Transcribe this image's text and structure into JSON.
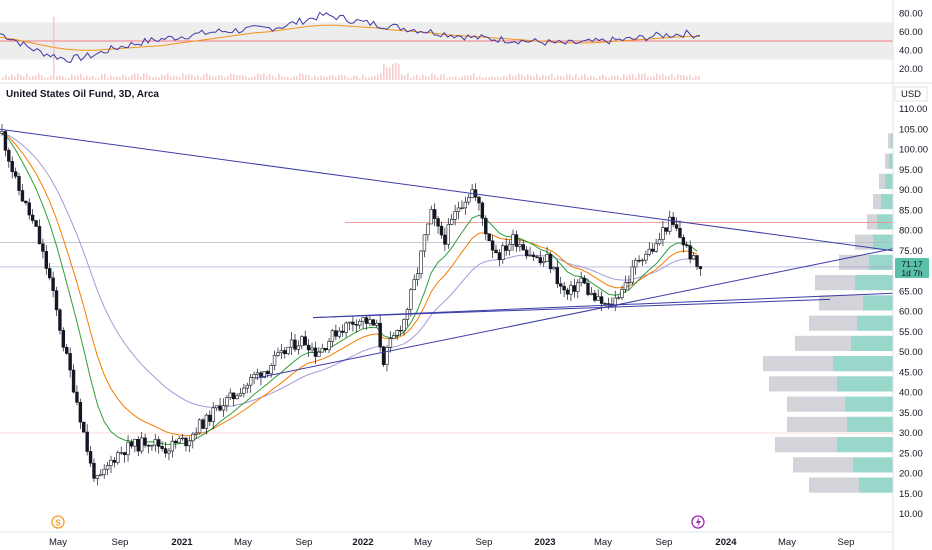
{
  "chart_title": "United States Oil Fund, 3D, Arca",
  "currency": "USD",
  "price_last": "71.17",
  "price_countdown": "1d 7h",
  "colors": {
    "up": "#131722",
    "down": "#131722",
    "rsi_line": "#3f3aa6",
    "rsi_ma": "#f7931a",
    "rsi_band": "#e6e6e6",
    "rsi_mid": "#f7525f",
    "trend_line": "#3c3ca8",
    "resistance": "#f0908f",
    "ema_green": "#2e9e3a",
    "ema_orange": "#f57c00",
    "ema_purple": "#a59ad6",
    "vp_grey": "#c7c9cf",
    "vp_teal": "#7ecdbd",
    "price_tag": "#5ac0a8"
  },
  "icons": [
    "dividend-icon",
    "earnings-icon"
  ],
  "chart_data": [
    {
      "type": "line",
      "title": "",
      "panel": "rsi",
      "ylim": [
        10,
        90
      ],
      "yticks": [
        "80.00",
        "60.00",
        "40.00",
        "20.00"
      ],
      "band": [
        30,
        70
      ],
      "mid": 50,
      "series": [
        {
          "values": [
            58,
            52,
            44,
            38,
            34,
            30,
            32,
            35,
            40,
            44,
            47,
            50,
            52,
            54,
            56,
            58,
            60,
            61,
            62,
            63,
            64,
            66,
            70,
            74,
            78,
            76,
            73,
            70,
            68,
            66,
            64,
            62,
            60,
            58,
            56,
            54,
            53,
            52,
            51,
            50,
            49,
            48,
            47,
            48,
            49,
            50,
            51,
            52,
            54,
            56,
            57,
            58,
            56
          ]
        },
        {
          "values": [
            54,
            52,
            49,
            46,
            43,
            41,
            40,
            40,
            41,
            42,
            43,
            44,
            45,
            47,
            49,
            51,
            53,
            55,
            57,
            59,
            60,
            62,
            64,
            66,
            67,
            67,
            66,
            65,
            64,
            62,
            61,
            60,
            59,
            57,
            56,
            55,
            54,
            53,
            52,
            51,
            50,
            49,
            48,
            48,
            48,
            49,
            50,
            51,
            52,
            53,
            54,
            55,
            55
          ]
        }
      ]
    },
    {
      "type": "candlestick",
      "title": "",
      "panel": "price",
      "ylim": [
        5,
        115
      ],
      "yticks": [
        "110.00",
        "105.00",
        "100.00",
        "95.00",
        "90.00",
        "85.00",
        "80.00",
        "75.00",
        "70.00",
        "65.00",
        "60.00",
        "55.00",
        "50.00",
        "45.00",
        "40.00",
        "35.00",
        "30.00",
        "25.00",
        "20.00",
        "15.00",
        "10.00"
      ],
      "x_ticks": [
        "May",
        "Sep",
        "2021",
        "May",
        "Sep",
        "2022",
        "May",
        "Sep",
        "2023",
        "May",
        "Sep",
        "2024",
        "May",
        "Sep"
      ],
      "x_ticks_bold": [
        "2021",
        "2022",
        "2023",
        "2024"
      ],
      "close": [
        104,
        98,
        92,
        88,
        84,
        80,
        74,
        68,
        60,
        52,
        45,
        38,
        30,
        22,
        18,
        20,
        23,
        25,
        26,
        27,
        27,
        28,
        28,
        27,
        26,
        27,
        28,
        28,
        30,
        32,
        33,
        35,
        37,
        38,
        39,
        41,
        42,
        44,
        45,
        46,
        48,
        49,
        51,
        52,
        53,
        52,
        50,
        51,
        53,
        55,
        56,
        57,
        58,
        58,
        57,
        56,
        48,
        52,
        55,
        58,
        64,
        70,
        78,
        84,
        80,
        78,
        82,
        86,
        88,
        90,
        86,
        80,
        76,
        74,
        76,
        78,
        77,
        75,
        74,
        72,
        73,
        70,
        66,
        64,
        66,
        68,
        65,
        63,
        62,
        61,
        63,
        66,
        68,
        72,
        74,
        75,
        76,
        80,
        82,
        80,
        77,
        74,
        71
      ],
      "resistance": 82,
      "support": 62
    }
  ]
}
